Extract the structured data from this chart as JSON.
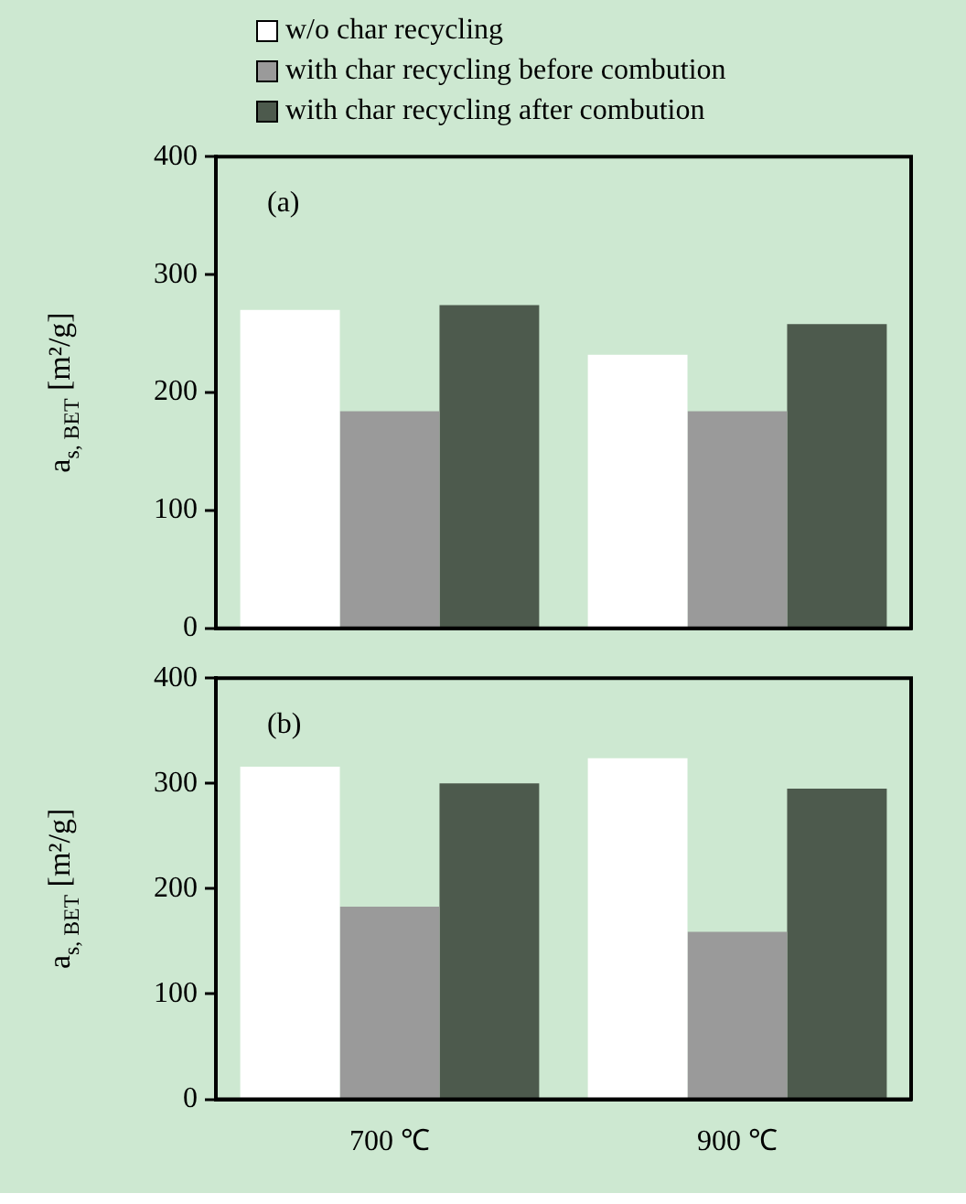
{
  "chart_data": [
    {
      "type": "bar",
      "categories": [
        null,
        null
      ],
      "legend": "top left",
      "tick_labels": "y",
      "grid": false,
      "ylabel": "a$_{s, BET}$ [m²/g]",
      "annotations": [
        "(a)"
      ],
      "ylim": [
        0,
        400
      ],
      "yticks": [
        0,
        100,
        200,
        300,
        400
      ],
      "series": [
        {
          "name": "w/o char recycling",
          "color": "#ffffff",
          "values": [
            270,
            232
          ]
        },
        {
          "name": "with char recycling before combution",
          "color": "#9a9a9a",
          "values": [
            184,
            184
          ]
        },
        {
          "name": "with char recycling after combution",
          "color": "#4d5a4d",
          "values": [
            274,
            258
          ]
        }
      ]
    },
    {
      "type": "bar",
      "categories": [
        "700 ℃",
        "900 ℃"
      ],
      "grid": false,
      "ylabel": "a$_{s, BET}$ [m²/g]",
      "annotations": [
        "(b)"
      ],
      "ylim": [
        0,
        400
      ],
      "yticks": [
        0,
        100,
        200,
        300,
        400
      ],
      "series": [
        {
          "color": "#ffffff",
          "values": [
            316,
            324
          ]
        },
        {
          "color": "#9a9a9a",
          "values": [
            183,
            159
          ]
        },
        {
          "color": "#4d5a4d",
          "values": [
            300,
            295
          ]
        }
      ]
    }
  ]
}
